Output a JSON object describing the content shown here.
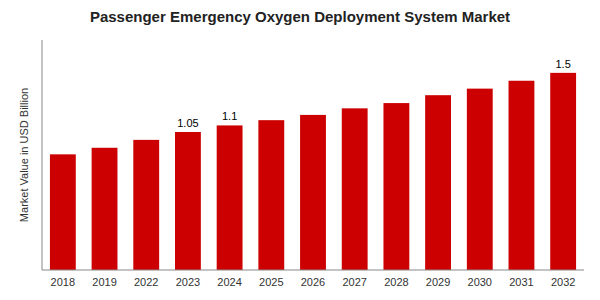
{
  "chart_data": {
    "type": "bar",
    "title": "Passenger Emergency Oxygen Deployment System Market",
    "ylabel": "Market Value in USD Billion",
    "categories": [
      "2018",
      "2019",
      "2022",
      "2023",
      "2024",
      "2025",
      "2026",
      "2027",
      "2028",
      "2029",
      "2030",
      "2031",
      "2032"
    ],
    "values": [
      0.88,
      0.93,
      0.99,
      1.05,
      1.1,
      1.14,
      1.18,
      1.23,
      1.27,
      1.33,
      1.38,
      1.44,
      1.5
    ],
    "value_labels": [
      null,
      null,
      null,
      "1.05",
      "1.1",
      null,
      null,
      null,
      null,
      null,
      null,
      null,
      "1.5"
    ],
    "data_labels": true,
    "color": "#cc0000",
    "ylim": [
      0,
      1.75
    ],
    "tick_labels": "x"
  }
}
